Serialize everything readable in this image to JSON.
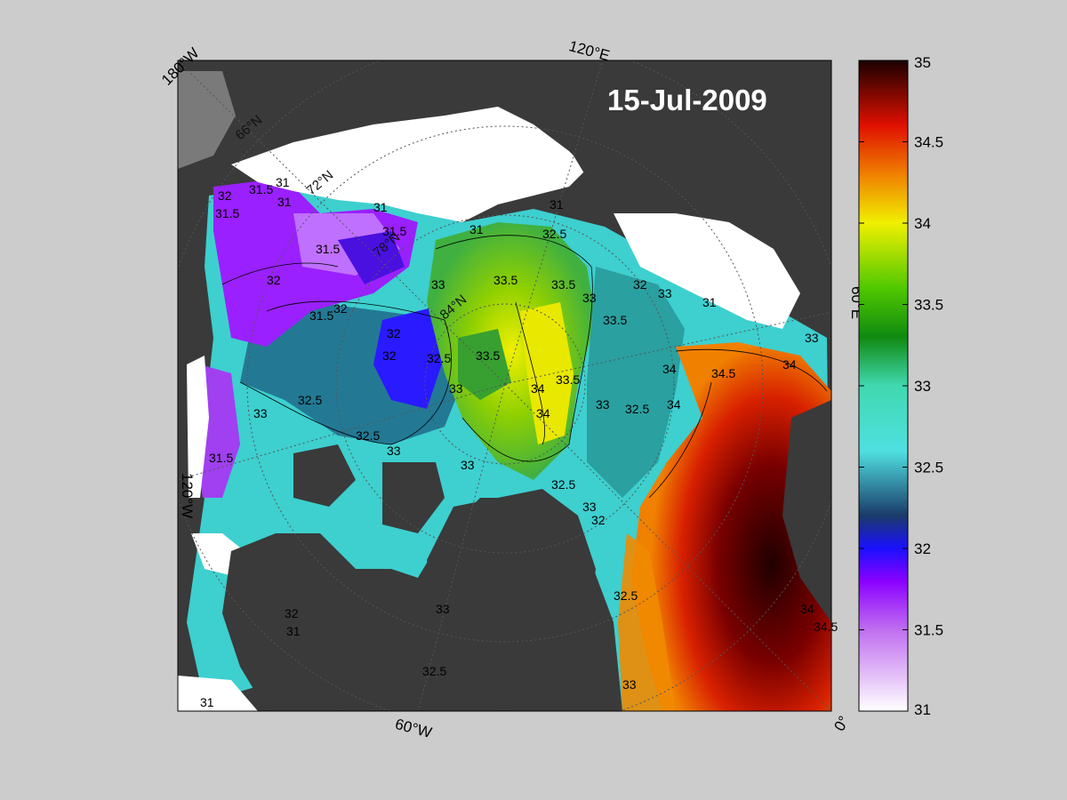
{
  "map": {
    "date": "15-Jul-2009",
    "edge_labels": {
      "top_left": "180°W",
      "top": "120°E",
      "right": "60°E",
      "bottom_right": "0°",
      "bottom": "60°W",
      "left": "120°W"
    },
    "latitude_labels": [
      "66°N",
      "72°N",
      "78°N",
      "84°N"
    ],
    "contour_labels": [
      "31",
      "31.5",
      "32",
      "31.5",
      "31",
      "31.5",
      "31",
      "31.5",
      "32",
      "31.5",
      "32",
      "32",
      "32",
      "32.5",
      "33",
      "33.5",
      "33.5",
      "33.5",
      "31",
      "31",
      "32.5",
      "33",
      "33",
      "33.5",
      "34",
      "34",
      "33.5",
      "33",
      "32.5",
      "32.5",
      "33",
      "32.5",
      "33",
      "33",
      "31",
      "32",
      "33",
      "34",
      "34.5",
      "34",
      "34",
      "34.5",
      "34",
      "33",
      "32.5",
      "33",
      "32.5",
      "32",
      "31",
      "31.5",
      "32",
      "31",
      "33",
      "32.5",
      "33"
    ],
    "colors": {
      "land": "#3a3a3a",
      "ice": "#ffffff",
      "background": "#cccccc"
    }
  },
  "colorbar": {
    "min": 31,
    "max": 35,
    "ticks": [
      "35",
      "34.5",
      "34",
      "33.5",
      "33",
      "32.5",
      "32",
      "31.5",
      "31"
    ],
    "stops": [
      {
        "value": 31.0,
        "color": "#ffffff"
      },
      {
        "value": 31.5,
        "color": "#c06ef0"
      },
      {
        "value": 31.8,
        "color": "#8a00ff"
      },
      {
        "value": 32.0,
        "color": "#1a10ff"
      },
      {
        "value": 32.2,
        "color": "#1a3a6a"
      },
      {
        "value": 32.6,
        "color": "#4fe0e0"
      },
      {
        "value": 33.0,
        "color": "#40d8b0"
      },
      {
        "value": 33.3,
        "color": "#108a10"
      },
      {
        "value": 33.6,
        "color": "#50c800"
      },
      {
        "value": 34.0,
        "color": "#f0f000"
      },
      {
        "value": 34.3,
        "color": "#f08000"
      },
      {
        "value": 34.6,
        "color": "#e01000"
      },
      {
        "value": 35.0,
        "color": "#1a0000"
      }
    ]
  }
}
